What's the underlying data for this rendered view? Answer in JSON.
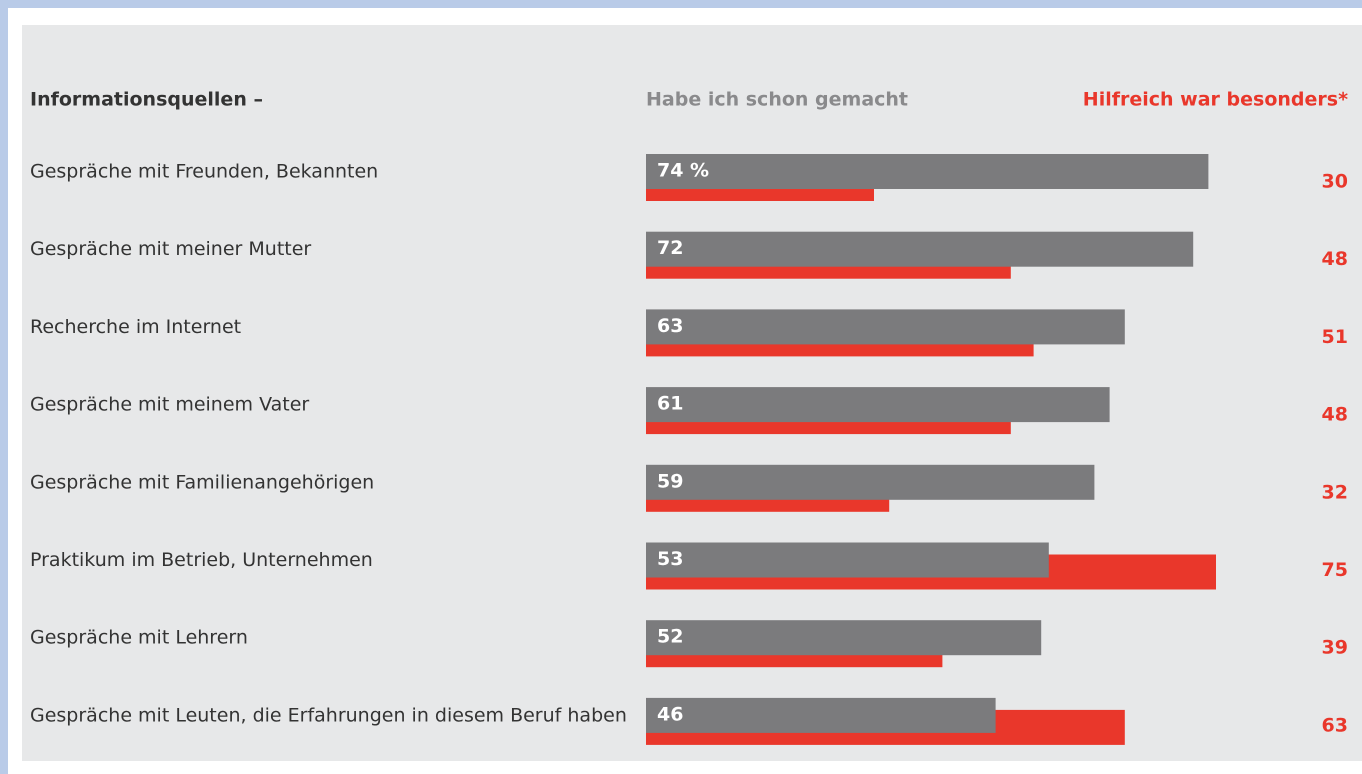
{
  "chart_data": {
    "type": "bar",
    "title": "Informationsquellen –",
    "categories": [
      "Gespräche mit Freunden, Bekannten",
      "Gespräche mit meiner Mutter",
      "Recherche im Internet",
      "Gespräche mit meinem Vater",
      "Gespräche mit Familienangehörigen",
      "Praktikum im Betrieb, Unternehmen",
      "Gespräche mit Lehrern",
      "Gespräche mit Leuten, die Erfahrungen in diesem Beruf haben"
    ],
    "series": [
      {
        "name": "Habe ich schon gemacht",
        "color": "#7b7b7d",
        "values": [
          74,
          72,
          63,
          61,
          59,
          53,
          52,
          46
        ],
        "value_labels": [
          "74 %",
          "72",
          "63",
          "61",
          "59",
          "53",
          "52",
          "46"
        ]
      },
      {
        "name": "Hilfreich war besonders*",
        "color": "#e9372b",
        "values": [
          30,
          48,
          51,
          48,
          32,
          75,
          39,
          63
        ]
      }
    ],
    "xlim": [
      0,
      100
    ]
  }
}
